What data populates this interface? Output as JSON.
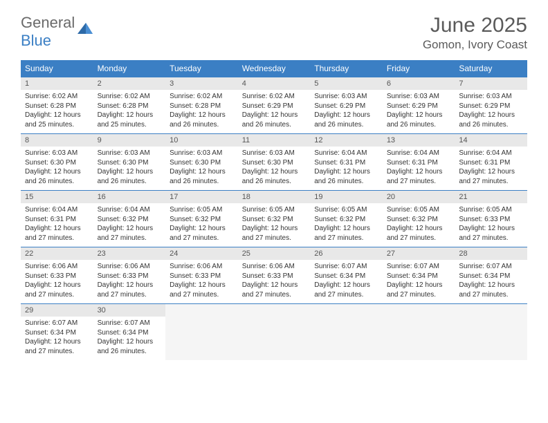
{
  "logo": {
    "text1": "General",
    "text2": "Blue",
    "color_general": "#6a6a6a",
    "color_blue": "#3b7fc4",
    "icon_fill": "#2d6aa8"
  },
  "title": {
    "month": "June 2025",
    "location": "Gomon, Ivory Coast",
    "title_color": "#5a5a5a"
  },
  "styling": {
    "header_bg": "#3b7fc4",
    "header_text": "#ffffff",
    "daynum_bg": "#e8e8e8",
    "daynum_text": "#555555",
    "body_text": "#333333",
    "empty_bg": "#f5f5f5",
    "border_color": "#3b7fc4",
    "font_family": "Arial",
    "th_fontsize": 12,
    "daynum_fontsize": 11,
    "body_fontsize": 10
  },
  "weekdays": [
    "Sunday",
    "Monday",
    "Tuesday",
    "Wednesday",
    "Thursday",
    "Friday",
    "Saturday"
  ],
  "days": [
    {
      "n": "1",
      "sunrise": "6:02 AM",
      "sunset": "6:28 PM",
      "daylight": "12 hours and 25 minutes."
    },
    {
      "n": "2",
      "sunrise": "6:02 AM",
      "sunset": "6:28 PM",
      "daylight": "12 hours and 25 minutes."
    },
    {
      "n": "3",
      "sunrise": "6:02 AM",
      "sunset": "6:28 PM",
      "daylight": "12 hours and 26 minutes."
    },
    {
      "n": "4",
      "sunrise": "6:02 AM",
      "sunset": "6:29 PM",
      "daylight": "12 hours and 26 minutes."
    },
    {
      "n": "5",
      "sunrise": "6:03 AM",
      "sunset": "6:29 PM",
      "daylight": "12 hours and 26 minutes."
    },
    {
      "n": "6",
      "sunrise": "6:03 AM",
      "sunset": "6:29 PM",
      "daylight": "12 hours and 26 minutes."
    },
    {
      "n": "7",
      "sunrise": "6:03 AM",
      "sunset": "6:29 PM",
      "daylight": "12 hours and 26 minutes."
    },
    {
      "n": "8",
      "sunrise": "6:03 AM",
      "sunset": "6:30 PM",
      "daylight": "12 hours and 26 minutes."
    },
    {
      "n": "9",
      "sunrise": "6:03 AM",
      "sunset": "6:30 PM",
      "daylight": "12 hours and 26 minutes."
    },
    {
      "n": "10",
      "sunrise": "6:03 AM",
      "sunset": "6:30 PM",
      "daylight": "12 hours and 26 minutes."
    },
    {
      "n": "11",
      "sunrise": "6:03 AM",
      "sunset": "6:30 PM",
      "daylight": "12 hours and 26 minutes."
    },
    {
      "n": "12",
      "sunrise": "6:04 AM",
      "sunset": "6:31 PM",
      "daylight": "12 hours and 26 minutes."
    },
    {
      "n": "13",
      "sunrise": "6:04 AM",
      "sunset": "6:31 PM",
      "daylight": "12 hours and 27 minutes."
    },
    {
      "n": "14",
      "sunrise": "6:04 AM",
      "sunset": "6:31 PM",
      "daylight": "12 hours and 27 minutes."
    },
    {
      "n": "15",
      "sunrise": "6:04 AM",
      "sunset": "6:31 PM",
      "daylight": "12 hours and 27 minutes."
    },
    {
      "n": "16",
      "sunrise": "6:04 AM",
      "sunset": "6:32 PM",
      "daylight": "12 hours and 27 minutes."
    },
    {
      "n": "17",
      "sunrise": "6:05 AM",
      "sunset": "6:32 PM",
      "daylight": "12 hours and 27 minutes."
    },
    {
      "n": "18",
      "sunrise": "6:05 AM",
      "sunset": "6:32 PM",
      "daylight": "12 hours and 27 minutes."
    },
    {
      "n": "19",
      "sunrise": "6:05 AM",
      "sunset": "6:32 PM",
      "daylight": "12 hours and 27 minutes."
    },
    {
      "n": "20",
      "sunrise": "6:05 AM",
      "sunset": "6:32 PM",
      "daylight": "12 hours and 27 minutes."
    },
    {
      "n": "21",
      "sunrise": "6:05 AM",
      "sunset": "6:33 PM",
      "daylight": "12 hours and 27 minutes."
    },
    {
      "n": "22",
      "sunrise": "6:06 AM",
      "sunset": "6:33 PM",
      "daylight": "12 hours and 27 minutes."
    },
    {
      "n": "23",
      "sunrise": "6:06 AM",
      "sunset": "6:33 PM",
      "daylight": "12 hours and 27 minutes."
    },
    {
      "n": "24",
      "sunrise": "6:06 AM",
      "sunset": "6:33 PM",
      "daylight": "12 hours and 27 minutes."
    },
    {
      "n": "25",
      "sunrise": "6:06 AM",
      "sunset": "6:33 PM",
      "daylight": "12 hours and 27 minutes."
    },
    {
      "n": "26",
      "sunrise": "6:07 AM",
      "sunset": "6:34 PM",
      "daylight": "12 hours and 27 minutes."
    },
    {
      "n": "27",
      "sunrise": "6:07 AM",
      "sunset": "6:34 PM",
      "daylight": "12 hours and 27 minutes."
    },
    {
      "n": "28",
      "sunrise": "6:07 AM",
      "sunset": "6:34 PM",
      "daylight": "12 hours and 27 minutes."
    },
    {
      "n": "29",
      "sunrise": "6:07 AM",
      "sunset": "6:34 PM",
      "daylight": "12 hours and 27 minutes."
    },
    {
      "n": "30",
      "sunrise": "6:07 AM",
      "sunset": "6:34 PM",
      "daylight": "12 hours and 26 minutes."
    }
  ],
  "labels": {
    "sunrise": "Sunrise:",
    "sunset": "Sunset:",
    "daylight": "Daylight:"
  }
}
